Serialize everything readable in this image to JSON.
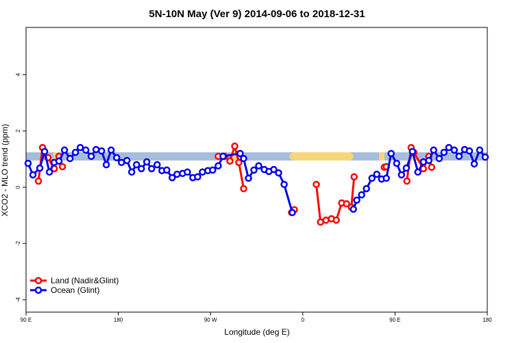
{
  "chart_data": {
    "type": "line",
    "title": "5N-10N May (Ver 9)   2014-09-06 to 2018-12-31",
    "x_label": "Longitude (deg E)",
    "y_label": "XCO2 - MLO trend (ppm)",
    "xlim": [
      90,
      540
    ],
    "ylim": [
      -4.44,
      5.68
    ],
    "xticks": [
      {
        "value": 90,
        "label": "90 E"
      },
      180,
      {
        "value": 270,
        "label": "90 W"
      },
      {
        "value": 360,
        "label": "0"
      },
      {
        "value": 450,
        "label": "90 E"
      },
      {
        "value": 540,
        "label": "180"
      }
    ],
    "yticks": [
      -4,
      -2,
      0,
      2,
      4
    ],
    "grid": false,
    "legend": "bottom-left",
    "series": [
      {
        "name": "Land (Nadir&Glint)",
        "color": "#ff0000",
        "x": [
          102.1,
          106.1,
          111.4,
          117.5,
          122.1,
          125.5,
          null,
          277.5,
          283.5,
          288.9,
          293.6,
          297.6,
          302.3,
          null,
          349.1,
          351.8,
          null,
          373.2,
          377.3,
          382.6,
          388.0,
          392.7,
          398.0,
          402.7,
          407.4,
          410.1,
          null,
          439.5,
          441.5,
          null,
          461.6,
          465.7,
          468.3,
          477.7,
          483.0,
          485.7
        ],
        "values": [
          0.22,
          1.41,
          1.05,
          0.66,
          1.1,
          0.73,
          null,
          1.1,
          1.1,
          0.93,
          1.46,
          0.88,
          -0.05,
          null,
          -0.9,
          -0.8,
          null,
          0.1,
          -1.24,
          -1.17,
          -1.12,
          -1.17,
          -0.56,
          -0.59,
          -0.71,
          0.37,
          null,
          0.71,
          0.73,
          null,
          0.22,
          1.41,
          1.24,
          0.66,
          1.1,
          0.71
        ]
      },
      {
        "name": "Ocean (Glint)",
        "color": "#0000ee",
        "x": [
          92.0,
          96.7,
          103.4,
          108.1,
          112.8,
          117.5,
          122.1,
          127.5,
          132.9,
          138.2,
          142.9,
          148.3,
          153.6,
          158.3,
          163.7,
          168.3,
          173.0,
          178.4,
          183.1,
          188.4,
          193.1,
          197.8,
          202.5,
          207.8,
          212.5,
          217.9,
          222.6,
          227.3,
          232.6,
          237.3,
          242.7,
          247.4,
          252.7,
          257.4,
          262.1,
          267.4,
          272.1,
          277.5,
          282.2,
          298.9,
          302.3,
          307.0,
          312.3,
          317.0,
          322.4,
          327.0,
          331.7,
          336.4,
          341.8,
          349.8,
          null,
          409.4,
          412.7,
          417.4,
          422.1,
          427.5,
          432.2,
          436.9,
          441.5,
          446.2,
          451.6,
          456.3,
          461.0,
          467.0,
          472.3,
          477.7,
          483.0,
          487.7,
          493.1,
          497.8,
          502.5,
          507.8,
          512.5,
          517.9,
          522.6,
          527.3,
          532.6,
          538.0
        ],
        "values": [
          0.85,
          0.44,
          0.68,
          1.27,
          0.54,
          0.88,
          0.93,
          1.32,
          1.02,
          1.24,
          1.41,
          1.32,
          1.1,
          1.34,
          1.29,
          0.8,
          1.32,
          1.05,
          0.88,
          0.95,
          0.54,
          0.8,
          0.66,
          0.9,
          0.66,
          0.8,
          0.59,
          0.61,
          0.34,
          0.46,
          0.49,
          0.54,
          0.34,
          0.37,
          0.54,
          0.59,
          0.61,
          0.76,
          1.1,
          1.2,
          1.02,
          0.32,
          0.61,
          0.76,
          0.63,
          0.56,
          0.63,
          0.51,
          0.1,
          -0.9,
          null,
          -0.78,
          -0.46,
          -0.27,
          -0.05,
          0.32,
          0.46,
          0.29,
          0.32,
          1.2,
          0.85,
          0.44,
          0.68,
          1.27,
          0.54,
          0.9,
          0.95,
          1.32,
          1.02,
          1.24,
          1.41,
          1.32,
          1.1,
          1.34,
          1.29,
          0.83,
          1.32,
          1.07
        ]
      }
    ]
  }
}
